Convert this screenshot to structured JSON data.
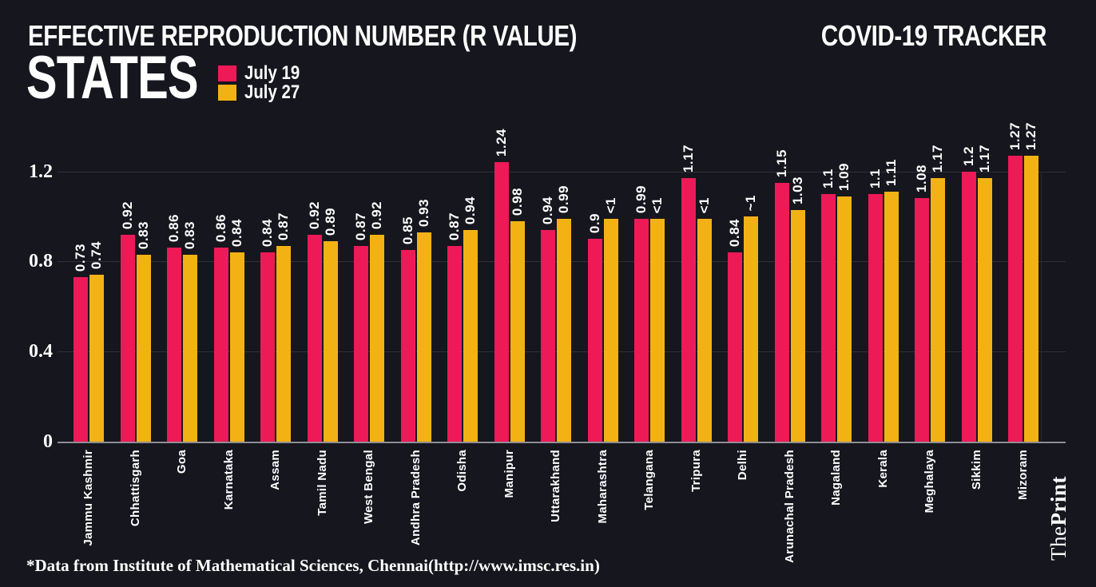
{
  "header": {
    "title": "EFFECTIVE REPRODUCTION NUMBER (R VALUE)",
    "tracker": "COVID-19 TRACKER",
    "subtitle": "STATES",
    "legend": [
      {
        "label": "July 19",
        "color": "#ed1a57"
      },
      {
        "label": "July 27",
        "color": "#f3b214"
      }
    ]
  },
  "chart_data": {
    "type": "bar",
    "title": "Effective Reproduction Number (R Value) - States",
    "xlabel": "",
    "ylabel": "R value",
    "ylim": [
      0,
      1.3
    ],
    "yticks": [
      "0",
      "0.4",
      "0.8",
      "1.2"
    ],
    "ytick_values": [
      0,
      0.4,
      0.8,
      1.2
    ],
    "grid": "horizontal",
    "legend_position": "top-left",
    "categories": [
      "Jammu Kashmir",
      "Chhattisgarh",
      "Goa",
      "Karnataka",
      "Assam",
      "Tamil Nadu",
      "West Bengal",
      "Andhra Pradesh",
      "Odisha",
      "Manipur",
      "Uttarakhand",
      "Maharashtra",
      "Telangana",
      "Tripura",
      "Delhi",
      "Arunachal Pradesh",
      "Nagaland",
      "Kerala",
      "Meghalaya",
      "Sikkim",
      "Mizoram"
    ],
    "series": [
      {
        "name": "July 19",
        "color": "#ed1a57",
        "values": [
          0.73,
          0.92,
          0.86,
          0.86,
          0.84,
          0.92,
          0.87,
          0.85,
          0.87,
          1.24,
          0.94,
          0.9,
          0.99,
          1.17,
          0.84,
          1.15,
          1.1,
          1.1,
          1.08,
          1.2,
          1.27
        ],
        "labels": [
          "0.73",
          "0.92",
          "0.86",
          "0.86",
          "0.84",
          "0.92",
          "0.87",
          "0.85",
          "0.87",
          "1.24",
          "0.94",
          "0.9",
          "0.99",
          "1.17",
          "0.84",
          "1.15",
          "1.1",
          "1.1",
          "1.08",
          "1.2",
          "1.27"
        ]
      },
      {
        "name": "July 27",
        "color": "#f3b214",
        "values": [
          0.74,
          0.83,
          0.83,
          0.84,
          0.87,
          0.89,
          0.92,
          0.93,
          0.94,
          0.98,
          0.99,
          0.99,
          0.99,
          0.99,
          1.0,
          1.03,
          1.09,
          1.11,
          1.17,
          1.17,
          1.27
        ],
        "labels": [
          "0.74",
          "0.83",
          "0.83",
          "0.84",
          "0.87",
          "0.89",
          "0.92",
          "0.93",
          "0.94",
          "0.98",
          "0.99",
          "<1",
          "<1",
          "<1",
          "~1",
          "1.03",
          "1.09",
          "1.11",
          "1.17",
          "1.17",
          "1.27"
        ]
      }
    ]
  },
  "footer": {
    "source": "*Data from Institute of Mathematical Sciences, Chennai(http://www.imsc.res.in)",
    "brand": {
      "the": "The",
      "print": "Print"
    }
  },
  "colors": {
    "background": "#16161e",
    "bar_july19": "#ed1a57",
    "bar_july27": "#f3b214",
    "gridline": "#30303a",
    "axis_line": "#8e8e96",
    "text": "#ffffff"
  }
}
